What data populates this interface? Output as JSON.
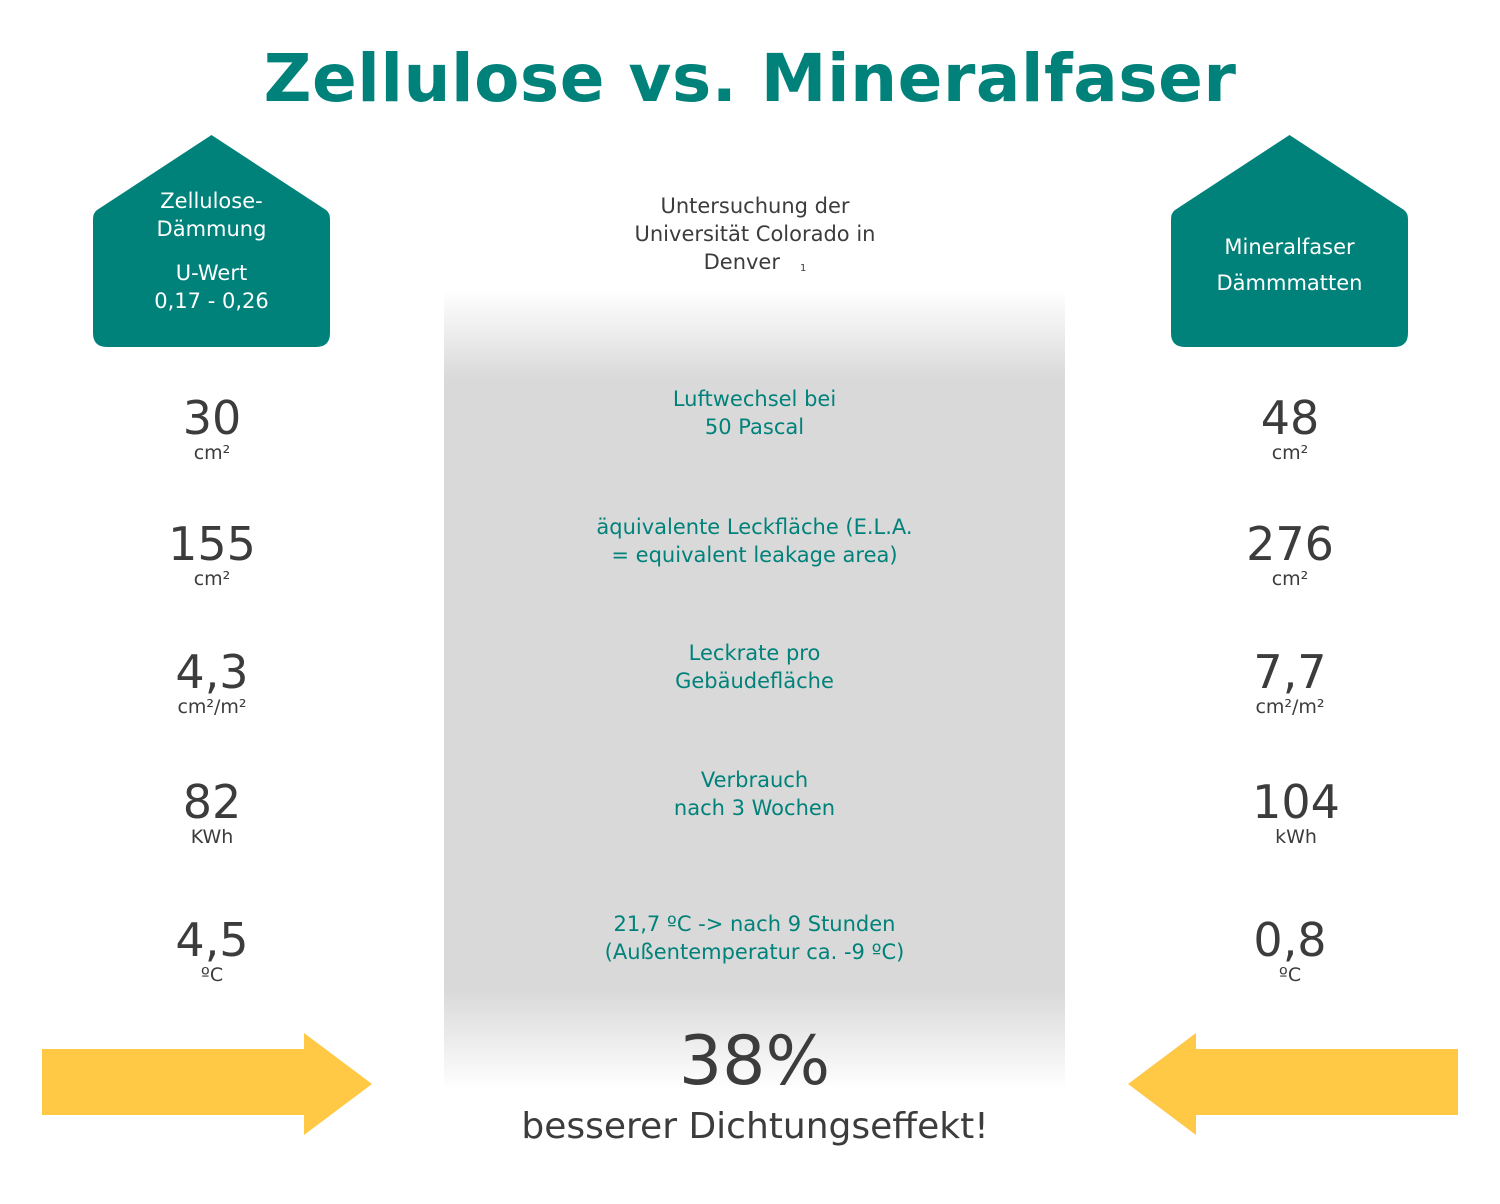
{
  "title": "Zellulose vs. Mineralfaser",
  "colors": {
    "teal": "#00827a",
    "panel_gray": "#d9d9d9",
    "arrow_yellow": "#ffc845",
    "text": "#3c3c3c"
  },
  "left_house": {
    "line1": "Zellulose-",
    "line2": "Dämmung",
    "line3": "U-Wert",
    "line4": "0,17 - 0,26"
  },
  "right_house": {
    "line1": "Mineralfaser",
    "line2": "Dämmmatten"
  },
  "source": {
    "line1": "Untersuchung der",
    "line2": "Universität Colorado in",
    "line3": "Denver",
    "footnote": "1"
  },
  "rows": [
    {
      "label1": "Luftwechsel bei",
      "label2": "50 Pascal",
      "left_value": "30",
      "left_unit": "cm²",
      "right_value": "48",
      "right_unit": "cm²"
    },
    {
      "label1": "äquivalente Leckfläche (E.L.A.",
      "label2": "= equivalent leakage area)",
      "left_value": "155",
      "left_unit": "cm²",
      "right_value": "276",
      "right_unit": "cm²"
    },
    {
      "label1": "Leckrate pro",
      "label2": "Gebäudefläche",
      "left_value": "4,3",
      "left_unit": "cm²/m²",
      "right_value": "7,7",
      "right_unit": "cm²/m²"
    },
    {
      "label1": "Verbrauch",
      "label2": "nach 3 Wochen",
      "left_value": "82",
      "left_unit": "KWh",
      "right_value": "104",
      "right_unit": "kWh"
    },
    {
      "label1": "21,7 ºC -> nach 9 Stunden",
      "label2": "(Außentemperatur ca. -9 ºC)",
      "left_value": "4,5",
      "left_unit": "ºC",
      "right_value": "0,8",
      "right_unit": "ºC"
    }
  ],
  "result": {
    "percent": "38%",
    "claim": "besserer Dichtungseffekt!"
  },
  "icons": {
    "left_arrow": "arrow-right-icon",
    "right_arrow": "arrow-left-icon",
    "house": "house-icon"
  }
}
